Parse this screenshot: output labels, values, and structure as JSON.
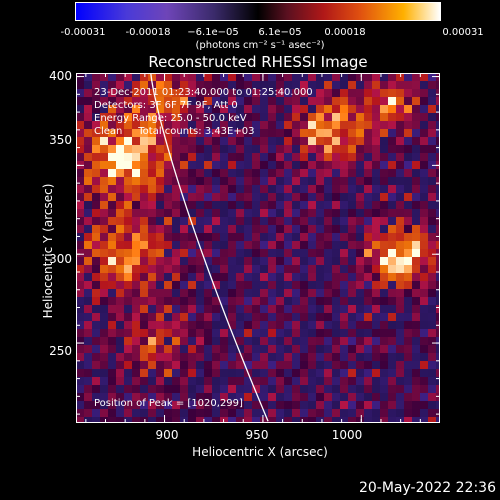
{
  "colorbar": {
    "ticks": [
      "-0.00031",
      "-0.00018",
      "−6.1e−05",
      "6.1e−05",
      "0.00018",
      "0.00031"
    ],
    "unit": "(photons cm⁻² s⁻¹ asec⁻²)"
  },
  "title": "Reconstructed RHESSI Image",
  "annotations": {
    "time": "23-Dec-2011 01:23:40.000 to 01:25:40.000",
    "detectors": "Detectors: 3F 6F 7F 9F, Att 0",
    "energy": "Energy Range: 25.0 - 50.0 keV",
    "clean": "Clean     Total counts: 3.43E+03",
    "peak": "Position of Peak = [1020,299]"
  },
  "axes": {
    "xlabel": "Heliocentric X (arcsec)",
    "ylabel": "Heliocentric Y (arcsec)",
    "xticks": [
      "900",
      "950",
      "1000"
    ],
    "yticks": [
      "400",
      "350",
      "300",
      "250"
    ]
  },
  "footer": {
    "date": "20-May-2022 22:36"
  },
  "chart_data": {
    "type": "heatmap",
    "title": "Reconstructed RHESSI Image",
    "xlabel": "Heliocentric X (arcsec)",
    "ylabel": "Heliocentric Y (arcsec)",
    "xlim": [
      855,
      1040
    ],
    "ylim": [
      205,
      402
    ],
    "color_range": [
      -0.00031,
      0.00031
    ],
    "peak": [
      1020,
      299
    ],
    "colors": {
      "low": "#0000ff",
      "mid": "#000000",
      "high": "#ffffff",
      "hot": "#ffb000",
      "red": "#b01818",
      "limb": "#ffffff"
    }
  }
}
